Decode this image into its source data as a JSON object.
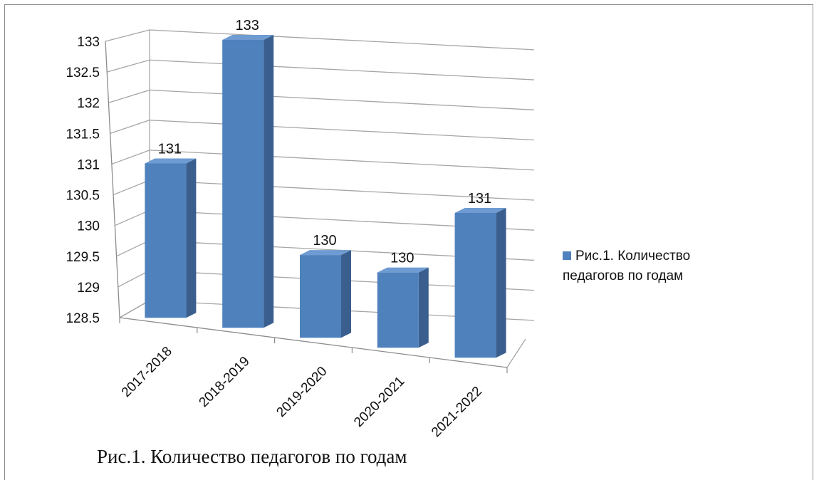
{
  "chart_data": {
    "type": "bar",
    "categories": [
      "2017-2018",
      "2018-2019",
      "2019-2020",
      "2020-2021",
      "2021-2022"
    ],
    "series": [
      {
        "name": "Рис.1. Количество педагогов по годам",
        "values": [
          131,
          133,
          129.75,
          129.6,
          130.55
        ],
        "data_labels": [
          "131",
          "133",
          "130",
          "130",
          "131"
        ]
      }
    ],
    "ylim": [
      128.5,
      133
    ],
    "yticks": [
      "128.5",
      "129",
      "129.5",
      "130",
      "130.5",
      "131",
      "131.5",
      "132",
      "132.5",
      "133"
    ],
    "grid": true,
    "legend_position": "right",
    "colors": {
      "bar_front": "#4f81bd",
      "bar_side": "#3a5f8e",
      "bar_top": "#6e9bd1",
      "grid": "#a6a6a6"
    }
  },
  "legend": {
    "label": "Рис.1. Количество педагогов по годам"
  },
  "caption": "Рис.1. Количество педагогов по годам"
}
